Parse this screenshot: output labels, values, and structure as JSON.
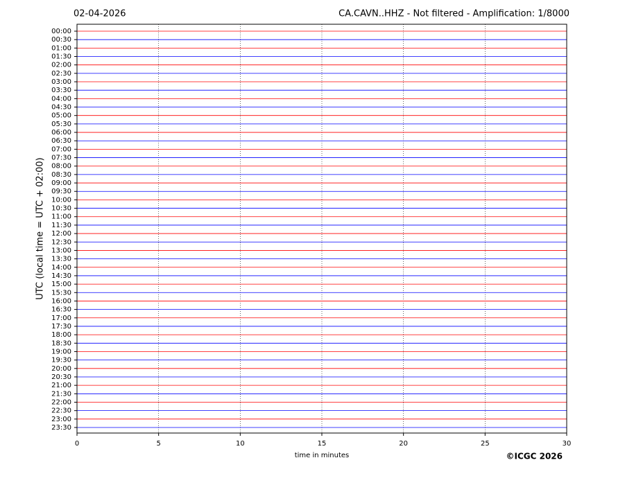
{
  "chart_data": {
    "type": "helicorder",
    "title_left": "02-04-2026",
    "title": "CA.CAVN..HHZ - Not filtered - Amplification: 1/8000",
    "y_label": "UTC (local time = UTC + 02:00)",
    "x_label": "time in minutes",
    "credit": "©ICGC 2026",
    "categories": [
      "00:00",
      "00:30",
      "01:00",
      "01:30",
      "02:00",
      "02:30",
      "03:00",
      "03:30",
      "04:00",
      "04:30",
      "05:00",
      "05:30",
      "06:00",
      "06:30",
      "07:00",
      "07:30",
      "08:00",
      "08:30",
      "09:00",
      "09:30",
      "10:00",
      "10:30",
      "11:00",
      "11:30",
      "12:00",
      "12:30",
      "13:00",
      "13:30",
      "14:00",
      "14:30",
      "15:00",
      "15:30",
      "16:00",
      "16:30",
      "17:00",
      "17:30",
      "18:00",
      "18:30",
      "19:00",
      "19:30",
      "20:00",
      "20:30",
      "21:00",
      "21:30",
      "22:00",
      "22:30",
      "23:00",
      "23:30"
    ],
    "colors": [
      "#ff0000",
      "#0000ff"
    ],
    "xlim": [
      0,
      30
    ],
    "xticks": [
      0,
      5,
      10,
      15,
      20,
      25,
      30
    ],
    "grid": true
  }
}
